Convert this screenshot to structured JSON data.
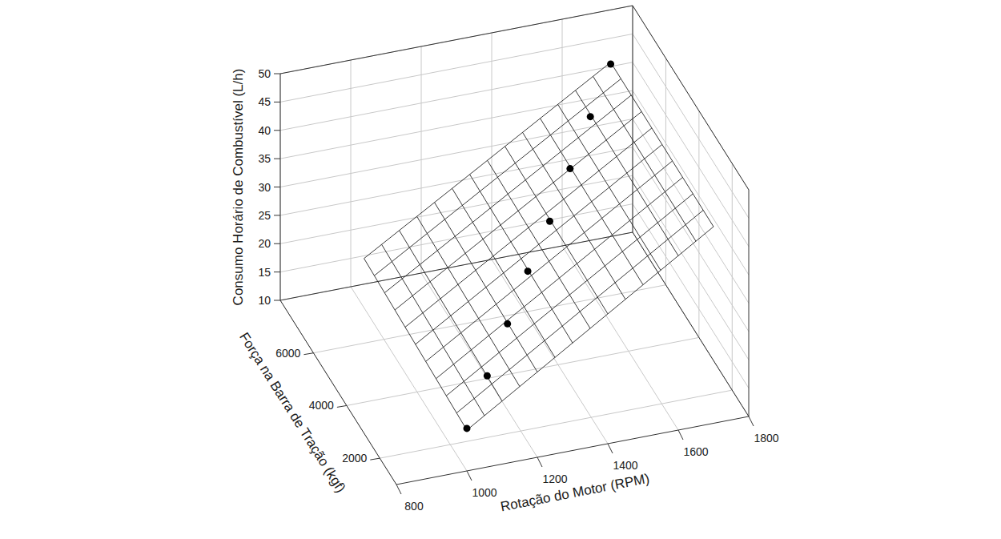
{
  "chart_data": {
    "type": "scatter3d",
    "x_label": "Rotação do Motor (RPM)",
    "y_label": "Força na Barra de Tração (kgf)",
    "z_label": "Consumo Horário de Combustível (L/h)",
    "x": [
      1000,
      1100,
      1200,
      1300,
      1400,
      1500,
      1600,
      1700
    ],
    "y": [
      1000,
      1900,
      2800,
      3700,
      4500,
      5400,
      6300,
      7200
    ],
    "z": [
      17.5,
      21.4,
      25.2,
      29.1,
      33.0,
      36.9,
      40.7,
      44.6
    ],
    "surface": {
      "x": [
        1000,
        1700
      ],
      "y": [
        1000,
        7200
      ],
      "z": [
        [
          17.2,
          18.7
        ],
        [
          44.7,
          44.9
        ]
      ]
    },
    "xlim": [
      800,
      1800
    ],
    "ylim": [
      1000,
      8000
    ],
    "zlim": [
      10,
      50
    ],
    "xticks": [
      800,
      1000,
      1200,
      1400,
      1600,
      1800
    ],
    "yticks": [
      2000,
      4000,
      6000
    ],
    "zticks": [
      10,
      15,
      20,
      25,
      30,
      35,
      40,
      45,
      50
    ],
    "grid": true,
    "marker": "circle",
    "color": "#000000"
  }
}
